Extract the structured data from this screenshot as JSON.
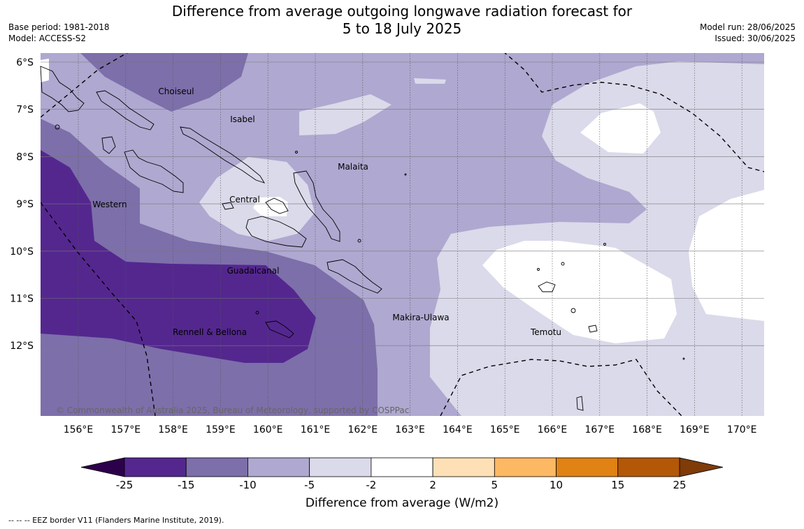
{
  "title_line1": "Difference from average outgoing longwave radiation forecast for",
  "title_line2": "5 to 18 July 2025",
  "base_period": "Base period: 1981-2018",
  "model": "Model: ACCESS-S2",
  "model_run": "Model run: 28/06/2025",
  "issued": "Issued: 30/06/2025",
  "copyright": "© Commonwealth of Australia 2025, Bureau of Meteorology, supported by COSPPac",
  "footnote": "-- -- -- EEZ border V11 (Flanders Marine Institute, 2019).",
  "map": {
    "lon_range": [
      155.2,
      170.5
    ],
    "lat_range": [
      -5.8,
      -13.5
    ],
    "lon_ticks": [
      "156°E",
      "157°E",
      "158°E",
      "159°E",
      "160°E",
      "161°E",
      "162°E",
      "163°E",
      "164°E",
      "165°E",
      "166°E",
      "167°E",
      "168°E",
      "169°E",
      "170°E"
    ],
    "lat_ticks": [
      "6°S",
      "7°S",
      "8°S",
      "9°S",
      "10°S",
      "11°S",
      "12°S"
    ],
    "regions": [
      {
        "name": "Choiseul",
        "lon": 157.0,
        "lat": -6.6
      },
      {
        "name": "Isabel",
        "lon": 158.5,
        "lat": -7.2
      },
      {
        "name": "Malaita",
        "lon": 161.0,
        "lat": -8.2
      },
      {
        "name": "Western",
        "lon": 155.5,
        "lat": -9.0
      },
      {
        "name": "Central",
        "lon": 159.0,
        "lat": -8.9
      },
      {
        "name": "Guadalcanal",
        "lon": 159.0,
        "lat": -10.4
      },
      {
        "name": "Makira-Ulawa",
        "lon": 162.5,
        "lat": -11.4
      },
      {
        "name": "Rennell & Bellona",
        "lon": 157.8,
        "lat": -11.7
      },
      {
        "name": "Temotu",
        "lon": 166.2,
        "lat": -11.7
      }
    ]
  },
  "colorbar": {
    "label": "Difference from average (W/m2)",
    "ticks": [
      "-25",
      "-15",
      "-10",
      "-5",
      "-2",
      "2",
      "5",
      "10",
      "15",
      "25"
    ],
    "colors": [
      "#54278f",
      "#7d6faa",
      "#afa8d0",
      "#dadaea",
      "#ffffff",
      "#fee0b6",
      "#fdb863",
      "#e08214",
      "#b35806"
    ],
    "extend_low": "#2d004b",
    "extend_high": "#7f3b08"
  }
}
